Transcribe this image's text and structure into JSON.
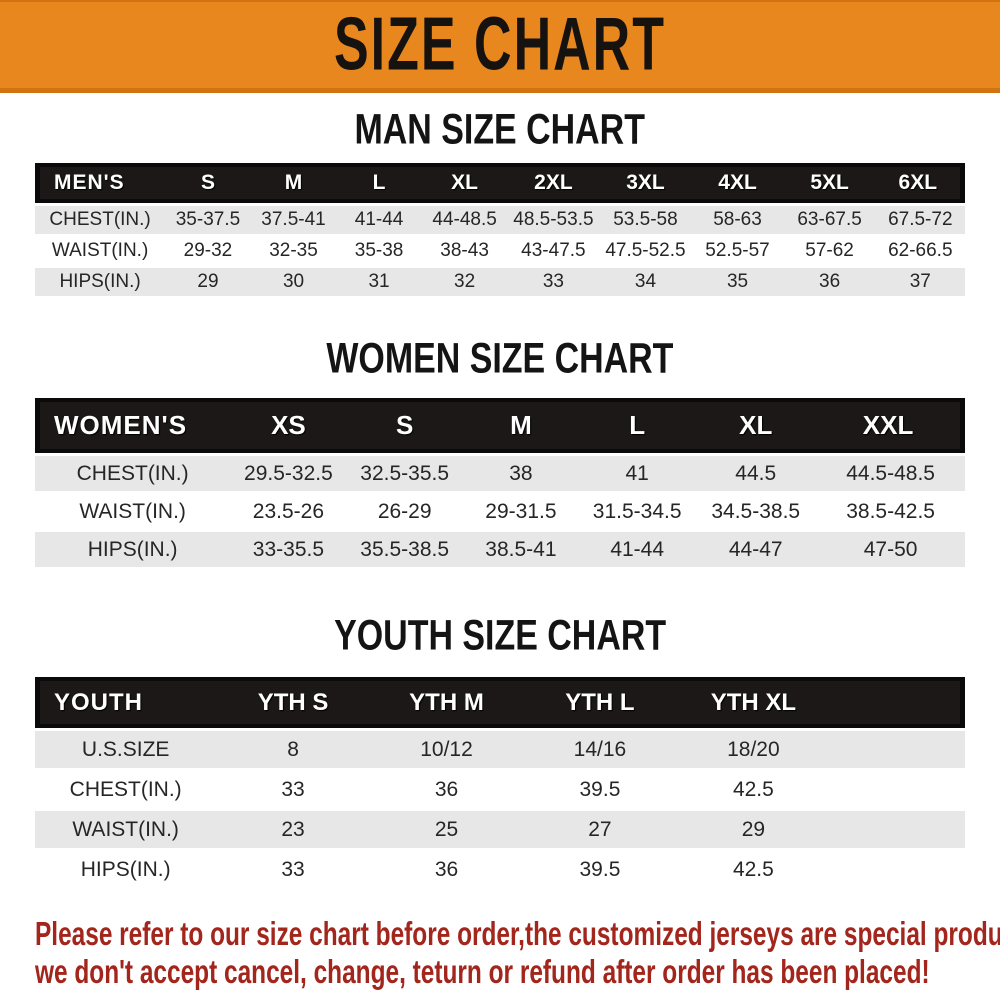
{
  "banner": {
    "title": "SIZE CHART"
  },
  "colors": {
    "banner_bg": "#E8871E",
    "banner_border": "#D07310",
    "header_bar": "#1D1818",
    "header_frame": "#0A0A0A",
    "row_shade": "#E7E7E7",
    "cell_text": "#262626",
    "disclaimer": "#A3261D"
  },
  "sections": [
    {
      "id": "men",
      "title": "MAN SIZE CHART",
      "header_label": "MEN'S",
      "columns": [
        "S",
        "M",
        "L",
        "XL",
        "2XL",
        "3XL",
        "4XL",
        "5XL",
        "6XL"
      ],
      "col_widths": [
        "14%",
        "9.2%",
        "9.2%",
        "9.2%",
        "9.2%",
        "9.9%",
        "9.9%",
        "9.9%",
        "9.9%",
        "9.6%"
      ],
      "rows": [
        {
          "label": "CHEST(IN.)",
          "values": [
            "35-37.5",
            "37.5-41",
            "41-44",
            "44-48.5",
            "48.5-53.5",
            "53.5-58",
            "58-63",
            "63-67.5",
            "67.5-72"
          ]
        },
        {
          "label": "WAIST(IN.)",
          "values": [
            "29-32",
            "32-35",
            "35-38",
            "38-43",
            "43-47.5",
            "47.5-52.5",
            "52.5-57",
            "57-62",
            "62-66.5"
          ]
        },
        {
          "label": "HIPS(IN.)",
          "values": [
            "29",
            "30",
            "31",
            "32",
            "33",
            "34",
            "35",
            "36",
            "37"
          ]
        }
      ]
    },
    {
      "id": "women",
      "title": "WOMEN SIZE CHART",
      "header_label": "WOMEN'S",
      "columns": [
        "XS",
        "S",
        "M",
        "L",
        "XL",
        "XXL"
      ],
      "col_widths": [
        "21%",
        "12.5%",
        "12.5%",
        "12.5%",
        "12.5%",
        "13%",
        "16%"
      ],
      "rows": [
        {
          "label": "CHEST(IN.)",
          "values": [
            "29.5-32.5",
            "32.5-35.5",
            "38",
            "41",
            "44.5",
            "44.5-48.5"
          ]
        },
        {
          "label": "WAIST(IN.)",
          "values": [
            "23.5-26",
            "26-29",
            "29-31.5",
            "31.5-34.5",
            "34.5-38.5",
            "38.5-42.5"
          ]
        },
        {
          "label": "HIPS(IN.)",
          "values": [
            "33-35.5",
            "35.5-38.5",
            "38.5-41",
            "41-44",
            "44-47",
            "47-50"
          ]
        }
      ]
    },
    {
      "id": "youth",
      "title": "YOUTH SIZE CHART",
      "header_label": "YOUTH",
      "columns": [
        "YTH S",
        "YTH M",
        "YTH L",
        "YTH XL"
      ],
      "col_widths": [
        "19.5%",
        "16.5%",
        "16.5%",
        "16.5%",
        "16.5%",
        "14.5%"
      ],
      "trailing_spacer": true,
      "rows": [
        {
          "label": "U.S.SIZE",
          "values": [
            "8",
            "10/12",
            "14/16",
            "18/20"
          ]
        },
        {
          "label": "CHEST(IN.)",
          "values": [
            "33",
            "36",
            "39.5",
            "42.5"
          ]
        },
        {
          "label": "WAIST(IN.)",
          "values": [
            "23",
            "25",
            "27",
            "29"
          ]
        },
        {
          "label": "HIPS(IN.)",
          "values": [
            "33",
            "36",
            "39.5",
            "42.5"
          ]
        }
      ]
    }
  ],
  "disclaimer": {
    "line1": "Please refer to our size chart before order,the customized jerseys are special products,",
    "line2": "we don't accept cancel, change, teturn or refund after order has been placed!"
  }
}
